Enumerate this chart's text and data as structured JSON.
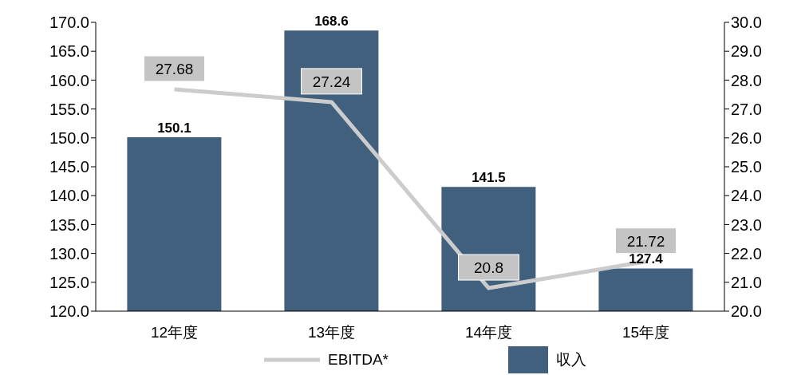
{
  "chart_data": {
    "type": "bar",
    "categories": [
      "12年度",
      "13年度",
      "14年度",
      "15年度"
    ],
    "series": [
      {
        "name": "EBITDA*",
        "type": "line",
        "axis": "y2",
        "color": "#cccccc",
        "values": [
          27.68,
          27.24,
          20.8,
          21.72
        ]
      },
      {
        "name": "収入",
        "color": "#41607e",
        "values": [
          150.1,
          168.6,
          141.5,
          127.4
        ]
      }
    ],
    "ylim": [
      120,
      170
    ],
    "yticks": [
      {
        "value": 120,
        "label": "120.0"
      },
      {
        "value": 125,
        "label": "125.0"
      },
      {
        "value": 130,
        "label": "130.0"
      },
      {
        "value": 135,
        "label": "135.0"
      },
      {
        "value": 140,
        "label": "140.0"
      },
      {
        "value": 145,
        "label": "145.0"
      },
      {
        "value": 150,
        "label": "150.0"
      },
      {
        "value": 155,
        "label": "155.0"
      },
      {
        "value": 160,
        "label": "160.0"
      },
      {
        "value": 165,
        "label": "165.0"
      },
      {
        "value": 170,
        "label": "170.0"
      }
    ],
    "y2lim": [
      20,
      30
    ],
    "y2ticks": [
      {
        "value": 20,
        "label": "20.0"
      },
      {
        "value": 21,
        "label": "21.0"
      },
      {
        "value": 22,
        "label": "22.0"
      },
      {
        "value": 23,
        "label": "23.0"
      },
      {
        "value": 24,
        "label": "24.0"
      },
      {
        "value": 25,
        "label": "25.0"
      },
      {
        "value": 26,
        "label": "26.0"
      },
      {
        "value": 27,
        "label": "27.0"
      },
      {
        "value": 28,
        "label": "28.0"
      },
      {
        "value": 29,
        "label": "29.0"
      },
      {
        "value": 30,
        "label": "30.0"
      }
    ],
    "data_labels": true,
    "grid": false,
    "legend": "bottom"
  }
}
